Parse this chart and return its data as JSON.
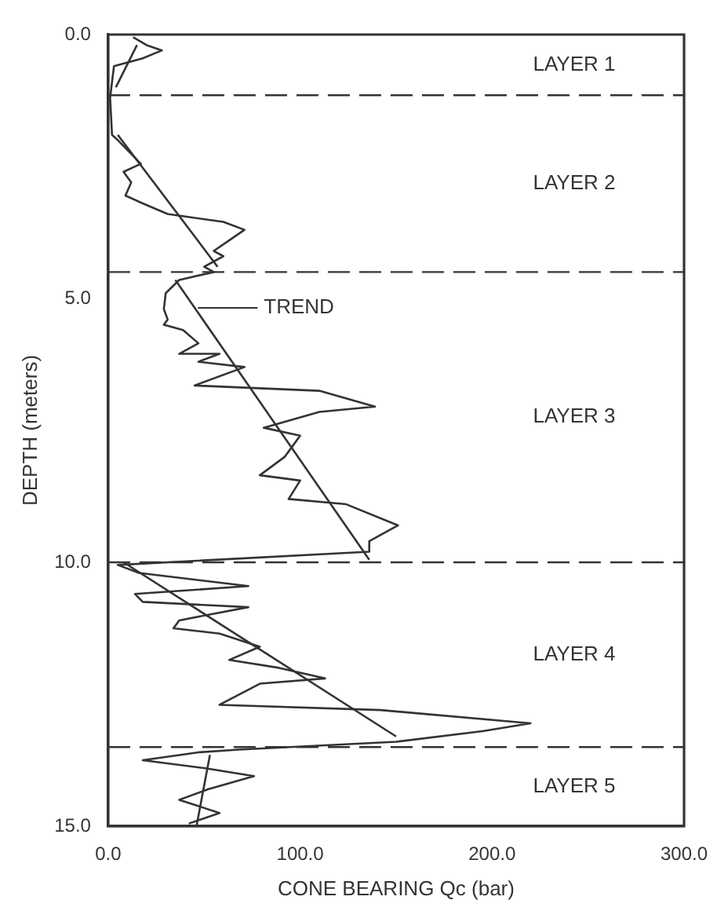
{
  "chart_data": {
    "type": "line",
    "xlabel": "CONE BEARING Qc (bar)",
    "ylabel": "DEPTH (meters)",
    "xlim": [
      0,
      300
    ],
    "xticks": [
      {
        "value": 0,
        "label": "0.0"
      },
      {
        "value": 100,
        "label": "100.0"
      },
      {
        "value": 200,
        "label": "200.0"
      },
      {
        "value": 300,
        "label": "300.0"
      }
    ],
    "ylim": [
      15,
      0
    ],
    "yticks": [
      {
        "value": 0,
        "label": "0.0"
      },
      {
        "value": 5,
        "label": "5.0"
      },
      {
        "value": 10,
        "label": "10.0"
      },
      {
        "value": 15,
        "label": "15.0"
      }
    ],
    "grid": false,
    "legend": false,
    "marker": "none",
    "line_style": "solid",
    "series": [
      {
        "color": "#333333",
        "x": [
          13,
          20,
          28,
          18,
          3,
          2,
          1,
          2,
          5,
          17,
          8,
          12,
          9,
          18,
          31,
          60,
          71,
          63,
          55,
          60,
          50,
          55,
          37,
          30,
          29,
          31,
          29,
          39,
          47,
          37,
          58,
          47,
          71,
          45,
          110,
          139,
          110,
          81,
          100,
          94,
          92,
          79,
          100,
          94,
          124,
          151,
          136,
          136,
          5,
          16,
          73,
          14,
          18,
          73,
          37,
          34,
          58,
          79,
          63,
          89,
          113,
          79,
          58,
          142,
          220,
          195,
          150,
          68,
          47,
          18,
          50,
          76,
          52,
          37,
          58,
          42
        ],
        "values": [
          0.05,
          0.2,
          0.3,
          0.45,
          0.6,
          0.9,
          1.2,
          1.9,
          2.0,
          2.45,
          2.6,
          2.8,
          3.05,
          3.2,
          3.4,
          3.55,
          3.7,
          3.9,
          4.1,
          4.2,
          4.4,
          4.5,
          4.65,
          4.9,
          5.2,
          5.4,
          5.5,
          5.6,
          5.85,
          6.05,
          6.05,
          6.2,
          6.3,
          6.65,
          6.75,
          7.05,
          7.15,
          7.45,
          7.6,
          7.9,
          8.0,
          8.35,
          8.45,
          8.8,
          8.9,
          9.3,
          9.6,
          9.8,
          10.05,
          10.2,
          10.45,
          10.6,
          10.75,
          10.85,
          11.1,
          11.25,
          11.35,
          11.6,
          11.85,
          12.0,
          12.2,
          12.3,
          12.7,
          12.8,
          13.05,
          13.2,
          13.4,
          13.55,
          13.6,
          13.75,
          13.9,
          14.05,
          14.3,
          14.5,
          14.75,
          14.95
        ]
      },
      {
        "color": "#333333",
        "x": [
          15,
          4
        ],
        "values": [
          0.2,
          1.0
        ]
      },
      {
        "color": "#333333",
        "x": [
          5,
          57
        ],
        "values": [
          1.9,
          4.4
        ]
      },
      {
        "color": "#333333",
        "x": [
          35,
          136
        ],
        "values": [
          4.65,
          9.95
        ]
      },
      {
        "color": "#333333",
        "x": [
          8,
          150
        ],
        "values": [
          10.0,
          13.3
        ]
      },
      {
        "color": "#333333",
        "x": [
          53,
          46
        ],
        "values": [
          13.65,
          15.0
        ]
      }
    ],
    "ref_lines": [
      {
        "axis": "y",
        "value": 1.15,
        "color": "#333333",
        "line_style": "dashed"
      },
      {
        "axis": "y",
        "value": 4.5,
        "color": "#333333",
        "line_style": "dashed"
      },
      {
        "axis": "y",
        "value": 10.0,
        "color": "#333333",
        "line_style": "dashed"
      },
      {
        "axis": "y",
        "value": 13.5,
        "color": "#333333",
        "line_style": "dashed"
      }
    ],
    "annotations": [
      "LAYER 1",
      "LAYER 2",
      "LAYER 3",
      "LAYER 4",
      "LAYER 5",
      "TREND"
    ]
  }
}
